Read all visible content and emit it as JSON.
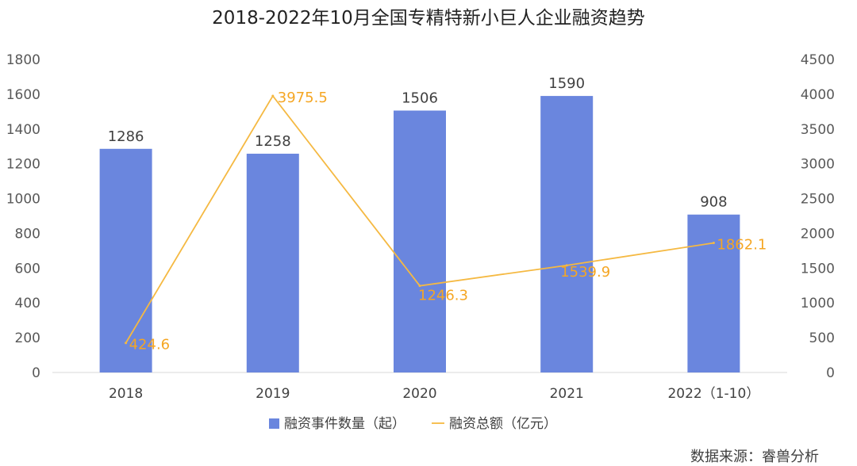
{
  "chart_data": {
    "type": "bar",
    "title": "2018-2022年10月全国专精特新小巨人企业融资趋势",
    "categories": [
      "2018",
      "2019",
      "2020",
      "2021",
      "2022（1-10）"
    ],
    "series": [
      {
        "name": "融资事件数量（起）",
        "type": "bar",
        "axis": "left",
        "color": "#6A86DE",
        "values": [
          1286,
          1258,
          1506,
          1590,
          908
        ]
      },
      {
        "name": "融资总额（亿元）",
        "type": "line",
        "axis": "right",
        "color": "#F5B942",
        "values": [
          424.6,
          3975.5,
          1246.3,
          1539.9,
          1862.1
        ]
      }
    ],
    "ylim_left": [
      0,
      1800
    ],
    "yticks_left": [
      0,
      200,
      400,
      600,
      800,
      1000,
      1200,
      1400,
      1600,
      1800
    ],
    "ylim_right": [
      0,
      4500
    ],
    "yticks_right": [
      0,
      500,
      1000,
      1500,
      2000,
      2500,
      3000,
      3500,
      4000,
      4500
    ],
    "legend_position": "bottom",
    "grid": false
  },
  "source": "数据来源：睿兽分析"
}
